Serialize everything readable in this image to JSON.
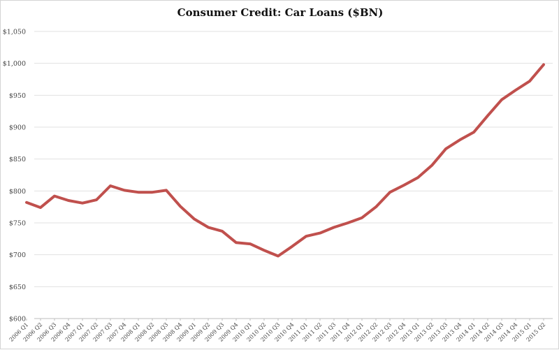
{
  "chart_data": {
    "type": "line",
    "title": "Consumer Credit: Car Loans ($BN)",
    "xlabel": "",
    "ylabel": "",
    "ylim": [
      600,
      1050
    ],
    "y_ticks": [
      600,
      650,
      700,
      750,
      800,
      850,
      900,
      950,
      1000,
      1050
    ],
    "y_tick_labels": [
      "$600",
      "$650",
      "$700",
      "$750",
      "$800",
      "$850",
      "$900",
      "$950",
      "$1,000",
      "$1,050"
    ],
    "grid": true,
    "line_color": "#c0504d",
    "categories": [
      "2006 Q1",
      "2006 Q2",
      "2006 Q3",
      "2006 Q4",
      "2007 Q1",
      "2007 Q2",
      "2007 Q3",
      "2007 Q4",
      "2008 Q1",
      "2008 Q2",
      "2008 Q3",
      "2008 Q4",
      "2009 Q1",
      "2009 Q2",
      "2009 Q3",
      "2009 Q4",
      "2010 Q1",
      "2010 Q2",
      "2010 Q3",
      "2010 Q4",
      "2011 Q1",
      "2011 Q2",
      "2011 Q3",
      "2011 Q4",
      "2012 Q1",
      "2012 Q2",
      "2012 Q3",
      "2012 Q4",
      "2013 Q1",
      "2013 Q2",
      "2013 Q3",
      "2013 Q4",
      "2014 Q1",
      "2014 Q2",
      "2014 Q3",
      "2014 Q4",
      "2015 Q1",
      "2015 Q2"
    ],
    "series": [
      {
        "values": [
          782,
          774,
          792,
          785,
          781,
          786,
          808,
          801,
          798,
          798,
          801,
          776,
          756,
          743,
          737,
          719,
          717,
          707,
          698,
          713,
          729,
          734,
          743,
          750,
          758,
          775,
          798,
          809,
          821,
          840,
          866,
          880,
          892,
          918,
          943,
          958,
          972,
          998
        ]
      }
    ]
  }
}
